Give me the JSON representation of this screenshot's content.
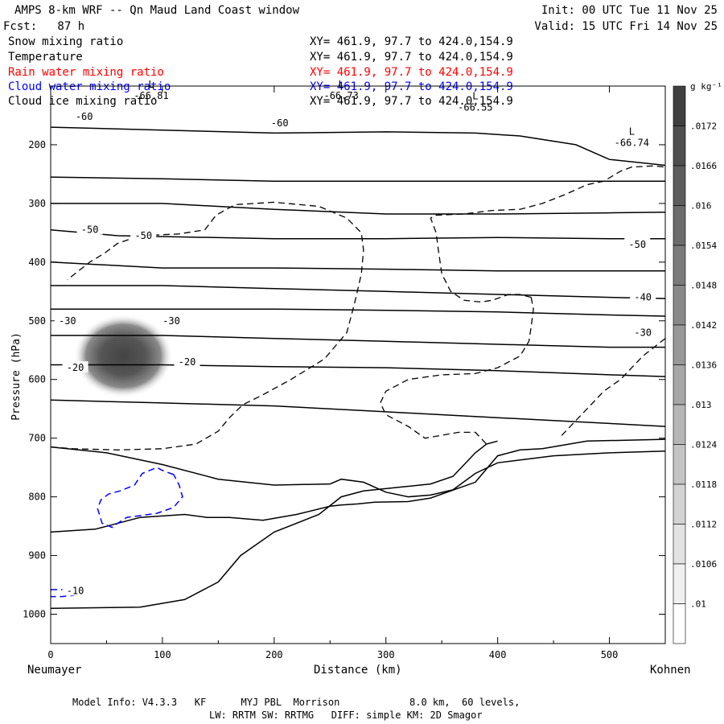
{
  "header": {
    "title": "AMPS 8-km WRF -- Qn Maud Land Coast window",
    "init": "Init: 00 UTC Tue 11 Nov 25",
    "fcst": "Fcst:   87 h",
    "valid": "Valid: 15 UTC Fri 14 Nov 25"
  },
  "fields": [
    {
      "name": "Snow mixing ratio",
      "xy": "XY= 461.9, 97.7 to 424.0,154.9",
      "color": "#000000"
    },
    {
      "name": "Temperature",
      "xy": "XY= 461.9, 97.7 to 424.0,154.9",
      "color": "#000000"
    },
    {
      "name": "Rain water mixing ratio",
      "xy": "XY= 461.9, 97.7 to 424.0,154.9",
      "color": "#ff0000"
    },
    {
      "name": "Cloud water mixing ratio",
      "xy": "XY= 461.9, 97.7 to 424.0,154.9",
      "color": "#0000ff"
    },
    {
      "name": "Cloud ice mixing ratio",
      "xy": "XY= 461.9, 97.7 to 424.0,154.9",
      "color": "#000000"
    }
  ],
  "footer": {
    "line1": "Model Info: V4.3.3   KF      MYJ PBL  Morrison            8.0 km,  60 levels,",
    "line2": "LW: RRTM SW: RRTMG   DIFF: simple KM: 2D Smagor"
  },
  "chart_data": {
    "type": "contour",
    "xlabel": "Distance (km)",
    "ylabel": "Pressure (hPa)",
    "xlim": [
      0,
      550
    ],
    "ylim": [
      1050,
      100
    ],
    "x_ticks": [
      0,
      100,
      200,
      300,
      400,
      500
    ],
    "y_ticks": [
      200,
      300,
      400,
      500,
      600,
      700,
      800,
      900,
      1000
    ],
    "x_endpoints": {
      "left": "Neumayer",
      "right": "Kohnen"
    },
    "colorbar": {
      "unit": "g kg⁻¹",
      "ticks": [
        ".0172",
        ".0166",
        ".016",
        ".0154",
        ".0148",
        ".0142",
        ".0136",
        ".013",
        ".0124",
        ".0118",
        ".0112",
        ".0106",
        ".01"
      ]
    },
    "pressure_minima": [
      {
        "x": 90,
        "p": 100,
        "label": "L",
        "value": "-66.81"
      },
      {
        "x": 260,
        "p": 100,
        "label": "L",
        "value": "-66.73"
      },
      {
        "x": 380,
        "p": 120,
        "label": "L",
        "value": "-66.55"
      },
      {
        "x": 520,
        "p": 180,
        "label": "L",
        "value": "-66.74"
      }
    ],
    "temperature_labels": [
      {
        "x": 30,
        "p": 152,
        "text": "-60"
      },
      {
        "x": 205,
        "p": 163,
        "text": "-60"
      },
      {
        "x": 35,
        "p": 345,
        "text": "-50"
      },
      {
        "x": 83,
        "p": 355,
        "text": "-50"
      },
      {
        "x": 525,
        "p": 370,
        "text": "-50"
      },
      {
        "x": 530,
        "p": 460,
        "text": "-40"
      },
      {
        "x": 15,
        "p": 500,
        "text": "-30"
      },
      {
        "x": 108,
        "p": 500,
        "text": "-30"
      },
      {
        "x": 530,
        "p": 520,
        "text": "-30"
      },
      {
        "x": 22,
        "p": 580,
        "text": "-20"
      },
      {
        "x": 122,
        "p": 570,
        "text": "-20"
      },
      {
        "x": 22,
        "p": 960,
        "text": "-10"
      }
    ],
    "isotherms": [
      {
        "name": "-60 upper",
        "points": [
          [
            0,
            170
          ],
          [
            100,
            175
          ],
          [
            200,
            180
          ],
          [
            300,
            178
          ],
          [
            380,
            180
          ],
          [
            420,
            185
          ],
          [
            470,
            200
          ],
          [
            500,
            225
          ],
          [
            550,
            235
          ]
        ]
      },
      {
        "name": "-60",
        "points": [
          [
            0,
            255
          ],
          [
            100,
            258
          ],
          [
            200,
            262
          ],
          [
            300,
            262
          ],
          [
            400,
            262
          ],
          [
            500,
            262
          ],
          [
            550,
            262
          ]
        ]
      },
      {
        "name": "-55",
        "points": [
          [
            0,
            300
          ],
          [
            100,
            300
          ],
          [
            200,
            310
          ],
          [
            300,
            318
          ],
          [
            400,
            318
          ],
          [
            500,
            316
          ],
          [
            550,
            315
          ]
        ]
      },
      {
        "name": "-50",
        "points": [
          [
            0,
            345
          ],
          [
            60,
            355
          ],
          [
            200,
            360
          ],
          [
            300,
            360
          ],
          [
            400,
            358
          ],
          [
            500,
            360
          ],
          [
            550,
            360
          ]
        ]
      },
      {
        "name": "-45",
        "points": [
          [
            0,
            400
          ],
          [
            100,
            410
          ],
          [
            200,
            410
          ],
          [
            300,
            412
          ],
          [
            400,
            415
          ],
          [
            500,
            415
          ],
          [
            550,
            415
          ]
        ]
      },
      {
        "name": "-40",
        "points": [
          [
            0,
            440
          ],
          [
            100,
            440
          ],
          [
            200,
            445
          ],
          [
            300,
            450
          ],
          [
            400,
            455
          ],
          [
            500,
            460
          ],
          [
            550,
            462
          ]
        ]
      },
      {
        "name": "-35",
        "points": [
          [
            0,
            480
          ],
          [
            100,
            480
          ],
          [
            200,
            480
          ],
          [
            300,
            482
          ],
          [
            400,
            485
          ],
          [
            500,
            490
          ],
          [
            550,
            492
          ]
        ]
      },
      {
        "name": "-30",
        "points": [
          [
            0,
            525
          ],
          [
            100,
            525
          ],
          [
            200,
            530
          ],
          [
            300,
            535
          ],
          [
            400,
            540
          ],
          [
            500,
            545
          ],
          [
            550,
            545
          ]
        ]
      },
      {
        "name": "-25",
        "points": [
          [
            0,
            575
          ],
          [
            100,
            575
          ],
          [
            200,
            578
          ],
          [
            300,
            580
          ],
          [
            400,
            585
          ],
          [
            500,
            592
          ],
          [
            550,
            595
          ]
        ]
      },
      {
        "name": "-20",
        "points": [
          [
            0,
            635
          ],
          [
            100,
            640
          ],
          [
            200,
            645
          ],
          [
            300,
            655
          ],
          [
            400,
            665
          ],
          [
            500,
            675
          ],
          [
            550,
            680
          ]
        ]
      },
      {
        "name": "-15",
        "points": [
          [
            0,
            715
          ],
          [
            50,
            725
          ],
          [
            100,
            745
          ],
          [
            150,
            770
          ],
          [
            200,
            780
          ],
          [
            250,
            778
          ],
          [
            260,
            770
          ],
          [
            280,
            775
          ],
          [
            300,
            792
          ],
          [
            320,
            800
          ],
          [
            340,
            797
          ],
          [
            360,
            788
          ],
          [
            380,
            760
          ],
          [
            400,
            742
          ],
          [
            450,
            730
          ],
          [
            500,
            725
          ],
          [
            550,
            722
          ]
        ]
      },
      {
        "name": "-10",
        "points": [
          [
            0,
            860
          ],
          [
            40,
            855
          ],
          [
            80,
            835
          ],
          [
            120,
            830
          ],
          [
            140,
            835
          ],
          [
            160,
            835
          ],
          [
            190,
            840
          ],
          [
            220,
            830
          ],
          [
            250,
            816
          ],
          [
            260,
            814
          ],
          [
            275,
            812
          ],
          [
            290,
            809
          ],
          [
            320,
            808
          ],
          [
            340,
            802
          ],
          [
            380,
            775
          ],
          [
            400,
            730
          ],
          [
            420,
            720
          ],
          [
            440,
            718
          ],
          [
            480,
            705
          ],
          [
            550,
            702
          ]
        ]
      },
      {
        "name": "-5",
        "points": [
          [
            0,
            990
          ],
          [
            80,
            988
          ],
          [
            120,
            975
          ],
          [
            150,
            945
          ],
          [
            170,
            900
          ],
          [
            200,
            860
          ],
          [
            240,
            830
          ],
          [
            260,
            800
          ],
          [
            280,
            790
          ],
          [
            320,
            782
          ],
          [
            340,
            778
          ],
          [
            360,
            765
          ],
          [
            370,
            745
          ],
          [
            380,
            725
          ],
          [
            390,
            710
          ],
          [
            400,
            705
          ]
        ]
      }
    ],
    "rain_water_contours": [
      {
        "name": "rain water outline",
        "points": [
          [
            0,
            715
          ],
          [
            20,
            718
          ],
          [
            60,
            720
          ],
          [
            100,
            718
          ],
          [
            130,
            710
          ],
          [
            150,
            688
          ],
          [
            160,
            665
          ],
          [
            172,
            643
          ],
          [
            190,
            626
          ],
          [
            215,
            600
          ],
          [
            245,
            565
          ],
          [
            265,
            520
          ],
          [
            272,
            470
          ],
          [
            278,
            420
          ],
          [
            280,
            380
          ],
          [
            278,
            350
          ],
          [
            265,
            325
          ],
          [
            240,
            305
          ],
          [
            200,
            298
          ],
          [
            165,
            302
          ],
          [
            148,
            320
          ],
          [
            138,
            345
          ],
          [
            115,
            352
          ],
          [
            80,
            355
          ],
          [
            60,
            368
          ],
          [
            48,
            385
          ],
          [
            35,
            400
          ],
          [
            15,
            430
          ]
        ]
      },
      {
        "name": "rain water right lobe",
        "points": [
          [
            430,
            460
          ],
          [
            420,
            455
          ],
          [
            410,
            455
          ],
          [
            395,
            465
          ],
          [
            385,
            468
          ],
          [
            370,
            465
          ],
          [
            358,
            450
          ],
          [
            350,
            420
          ],
          [
            347,
            380
          ],
          [
            345,
            350
          ],
          [
            340,
            325
          ],
          [
            345,
            320
          ],
          [
            370,
            318
          ],
          [
            395,
            312
          ],
          [
            420,
            310
          ],
          [
            440,
            300
          ],
          [
            460,
            285
          ],
          [
            480,
            268
          ],
          [
            495,
            262
          ],
          [
            510,
            245
          ],
          [
            520,
            238
          ],
          [
            540,
            236
          ],
          [
            550,
            238
          ]
        ]
      },
      {
        "name": "rain water lower loop",
        "points": [
          [
            430,
            460
          ],
          [
            432,
            480
          ],
          [
            430,
            510
          ],
          [
            428,
            535
          ],
          [
            420,
            560
          ],
          [
            400,
            580
          ],
          [
            380,
            590
          ],
          [
            350,
            592
          ],
          [
            320,
            600
          ],
          [
            300,
            620
          ],
          [
            295,
            640
          ],
          [
            300,
            660
          ],
          [
            320,
            680
          ],
          [
            335,
            700
          ],
          [
            350,
            695
          ],
          [
            365,
            690
          ],
          [
            380,
            690
          ],
          [
            390,
            710
          ]
        ]
      },
      {
        "name": "rain water far right",
        "points": [
          [
            550,
            530
          ],
          [
            530,
            560
          ],
          [
            520,
            580
          ],
          [
            510,
            600
          ],
          [
            495,
            620
          ],
          [
            480,
            650
          ],
          [
            465,
            680
          ],
          [
            455,
            700
          ]
        ]
      }
    ],
    "cloud_water_contours": [
      {
        "name": "cloud water blob",
        "points": [
          [
            110,
            762
          ],
          [
            100,
            755
          ],
          [
            95,
            750
          ],
          [
            82,
            760
          ],
          [
            75,
            780
          ],
          [
            62,
            790
          ],
          [
            52,
            795
          ],
          [
            45,
            805
          ],
          [
            42,
            820
          ],
          [
            46,
            845
          ],
          [
            55,
            852
          ],
          [
            60,
            845
          ],
          [
            68,
            835
          ],
          [
            80,
            832
          ],
          [
            95,
            828
          ],
          [
            110,
            818
          ],
          [
            118,
            800
          ],
          [
            115,
            780
          ]
        ]
      },
      {
        "name": "cloud water small",
        "points": [
          [
            0,
            958
          ],
          [
            10,
            958
          ],
          [
            18,
            962
          ],
          [
            20,
            968
          ],
          [
            10,
            970
          ],
          [
            0,
            970
          ]
        ]
      }
    ],
    "cloud_ice_maximum": {
      "x": 65,
      "p": 560,
      "value": ".0172"
    }
  }
}
